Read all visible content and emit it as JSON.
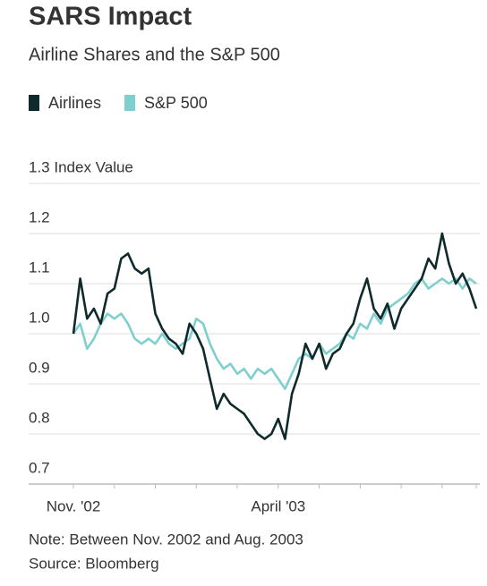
{
  "chart_data": {
    "type": "line",
    "title": "SARS Impact",
    "subtitle": "Airline Shares and the S&P 500",
    "categories": [
      "Nov. '02",
      null,
      null,
      null,
      null,
      null,
      null,
      null,
      null,
      null,
      null,
      null,
      null,
      null,
      null,
      null,
      null,
      null,
      null,
      null,
      null,
      null,
      null,
      null,
      null,
      null,
      null,
      null,
      null,
      null,
      "April '03",
      null,
      null,
      null,
      null,
      null,
      null,
      null,
      null,
      null,
      null,
      null,
      null,
      null,
      null,
      null,
      null,
      null,
      null,
      null,
      null,
      null,
      null,
      null,
      null,
      null,
      null,
      null,
      null,
      null
    ],
    "series": [
      {
        "name": "Airlines",
        "color": "#0f2a2a",
        "values": [
          1.0,
          1.11,
          1.03,
          1.05,
          1.02,
          1.08,
          1.09,
          1.15,
          1.16,
          1.13,
          1.12,
          1.13,
          1.04,
          1.01,
          0.99,
          0.98,
          0.96,
          1.02,
          1.0,
          0.97,
          0.91,
          0.85,
          0.88,
          0.86,
          0.85,
          0.84,
          0.82,
          0.8,
          0.79,
          0.8,
          0.83,
          0.79,
          0.88,
          0.92,
          0.98,
          0.95,
          0.98,
          0.93,
          0.96,
          0.97,
          1.0,
          1.02,
          1.07,
          1.11,
          1.05,
          1.03,
          1.06,
          1.01,
          1.05,
          1.07,
          1.09,
          1.11,
          1.15,
          1.13,
          1.2,
          1.14,
          1.1,
          1.12,
          1.09,
          1.05
        ]
      },
      {
        "name": "S&P 500",
        "color": "#7fcfcf",
        "values": [
          1.0,
          1.02,
          0.97,
          0.99,
          1.02,
          1.04,
          1.03,
          1.04,
          1.02,
          0.99,
          0.98,
          0.99,
          0.98,
          1.0,
          0.98,
          0.97,
          0.98,
          0.99,
          1.03,
          1.02,
          0.98,
          0.95,
          0.93,
          0.94,
          0.92,
          0.93,
          0.91,
          0.93,
          0.92,
          0.93,
          0.91,
          0.89,
          0.92,
          0.95,
          0.96,
          0.95,
          0.98,
          0.96,
          0.97,
          0.98,
          1.0,
          0.99,
          1.02,
          1.01,
          1.04,
          1.02,
          1.05,
          1.06,
          1.07,
          1.08,
          1.1,
          1.11,
          1.09,
          1.1,
          1.11,
          1.1,
          1.11,
          1.09,
          1.11,
          1.1
        ]
      }
    ],
    "ylim": [
      0.7,
      1.3
    ],
    "yticks": [
      0.7,
      0.8,
      0.9,
      {
        "value": 1,
        "label": "1.0"
      },
      1.1,
      1.2,
      {
        "value": 1.3,
        "label": "1.3 Index Value"
      }
    ],
    "grid": true,
    "note": "Note: Between Nov. 2002 and Aug. 2003",
    "source": "Source: Bloomberg"
  }
}
